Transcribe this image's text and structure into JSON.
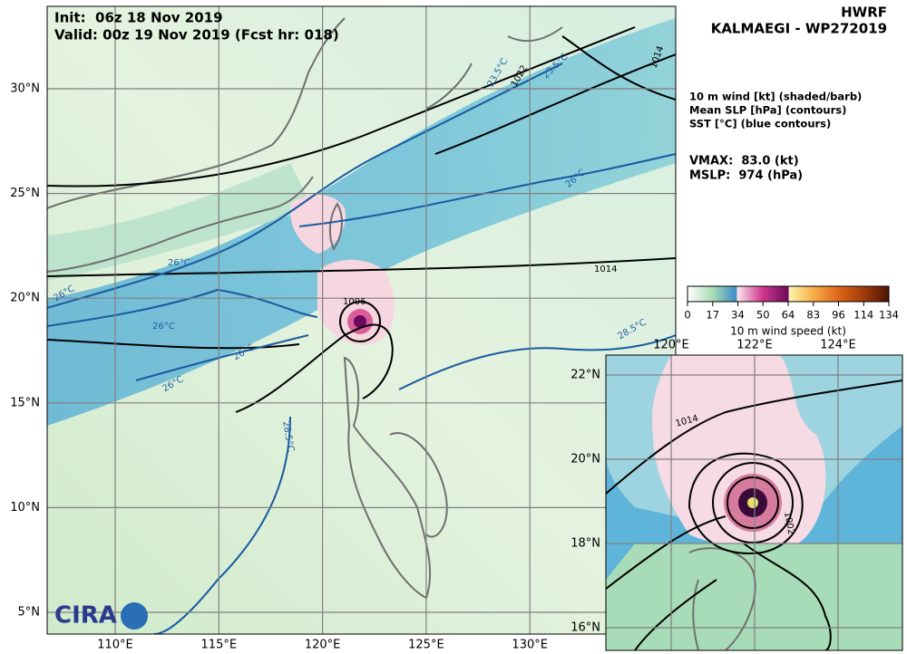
{
  "header": {
    "init": "Init:  06z 18 Nov 2019",
    "valid": "Valid: 00z 19 Nov 2019 (Fcst hr: 018)",
    "model": "HWRF",
    "storm": "KALMAEGI - WP272019"
  },
  "legend": {
    "fields": [
      "10 m wind [kt] (shaded/barb)",
      "Mean SLP [hPa] (contours)",
      "SST [°C] (blue contours)"
    ],
    "vmax": "VMAX:  83.0 (kt)",
    "mslp": "MSLP:  974 (hPa)"
  },
  "colorbar": {
    "ticks": [
      0,
      17,
      34,
      50,
      64,
      83,
      96,
      114,
      134
    ],
    "label": "10 m wind speed (kt)"
  },
  "main_map": {
    "lat_ticks": [
      {
        "value": 30,
        "label": "30°N"
      },
      {
        "value": 25,
        "label": "25°N"
      },
      {
        "value": 20,
        "label": "20°N"
      },
      {
        "value": 15,
        "label": "15°N"
      },
      {
        "value": 10,
        "label": "10°N"
      },
      {
        "value": 5,
        "label": "5°N"
      }
    ],
    "lon_ticks": [
      {
        "value": 110,
        "label": "110°E"
      },
      {
        "value": 115,
        "label": "115°E"
      },
      {
        "value": 120,
        "label": "120°E"
      },
      {
        "value": 125,
        "label": "125°E"
      },
      {
        "value": 130,
        "label": "130°E"
      }
    ],
    "contour_labels": [
      "1014",
      "1022",
      "23.5°C",
      "23.5°C",
      "1014",
      "26°C",
      "26°C",
      "26°C",
      "26°C",
      "26°C",
      "26°C",
      "28.5°C",
      "28.5°C",
      "1006"
    ]
  },
  "inset_map": {
    "lat_ticks": [
      {
        "value": 22,
        "label": "22°N"
      },
      {
        "value": 20,
        "label": "20°N"
      },
      {
        "value": 18,
        "label": "18°N"
      },
      {
        "value": 16,
        "label": "16°N"
      }
    ],
    "lon_ticks": [
      {
        "value": 120,
        "label": "120°E"
      },
      {
        "value": 122,
        "label": "122°E"
      },
      {
        "value": 124,
        "label": "124°E"
      }
    ],
    "contour_labels": [
      "1014",
      "1002"
    ]
  },
  "logo": "CIRA"
}
